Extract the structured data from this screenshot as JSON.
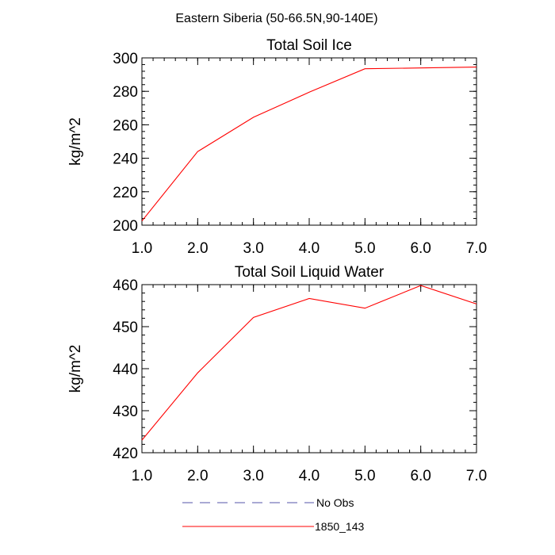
{
  "figure": {
    "title": "Eastern Siberia (50-66.5N,90-140E)",
    "legend": [
      {
        "label": "No Obs",
        "color": "#5555aa",
        "dashed": true
      },
      {
        "label": "1850_143",
        "color": "#ff0000",
        "dashed": false
      }
    ]
  },
  "chart_data": [
    {
      "type": "line",
      "title": "Total Soil Ice",
      "xlabel": "",
      "ylabel": "kg/m^2",
      "xlim": [
        1,
        7
      ],
      "ylim": [
        200,
        300
      ],
      "xticks": [
        1,
        2,
        3,
        4,
        5,
        6,
        7
      ],
      "xticklabels": [
        "1.0",
        "2.0",
        "3.0",
        "4.0",
        "5.0",
        "6.0",
        "7.0"
      ],
      "yticks": [
        200,
        220,
        240,
        260,
        280,
        300
      ],
      "yticklabels": [
        "200",
        "220",
        "240",
        "260",
        "280",
        "300"
      ],
      "ymin_step": 4,
      "grid": false,
      "series": [
        {
          "name": "1850_143",
          "color": "#ff0000",
          "x": [
            1,
            2,
            3,
            4,
            5,
            6,
            7
          ],
          "y": [
            202.5,
            244,
            264.5,
            279.5,
            293.5,
            294,
            294.5
          ]
        }
      ]
    },
    {
      "type": "line",
      "title": "Total Soil Liquid Water",
      "xlabel": "",
      "ylabel": "kg/m^2",
      "xlim": [
        1,
        7
      ],
      "ylim": [
        420,
        460
      ],
      "xticks": [
        1,
        2,
        3,
        4,
        5,
        6,
        7
      ],
      "xticklabels": [
        "1.0",
        "2.0",
        "3.0",
        "4.0",
        "5.0",
        "6.0",
        "7.0"
      ],
      "yticks": [
        420,
        430,
        440,
        450,
        460
      ],
      "yticklabels": [
        "420",
        "430",
        "440",
        "450",
        "460"
      ],
      "ymin_step": 2,
      "grid": false,
      "series": [
        {
          "name": "1850_143",
          "color": "#ff0000",
          "x": [
            1,
            2,
            3,
            4,
            5,
            6,
            7
          ],
          "y": [
            423,
            439,
            452.2,
            456.7,
            454.4,
            459.8,
            455.4
          ]
        }
      ]
    }
  ]
}
